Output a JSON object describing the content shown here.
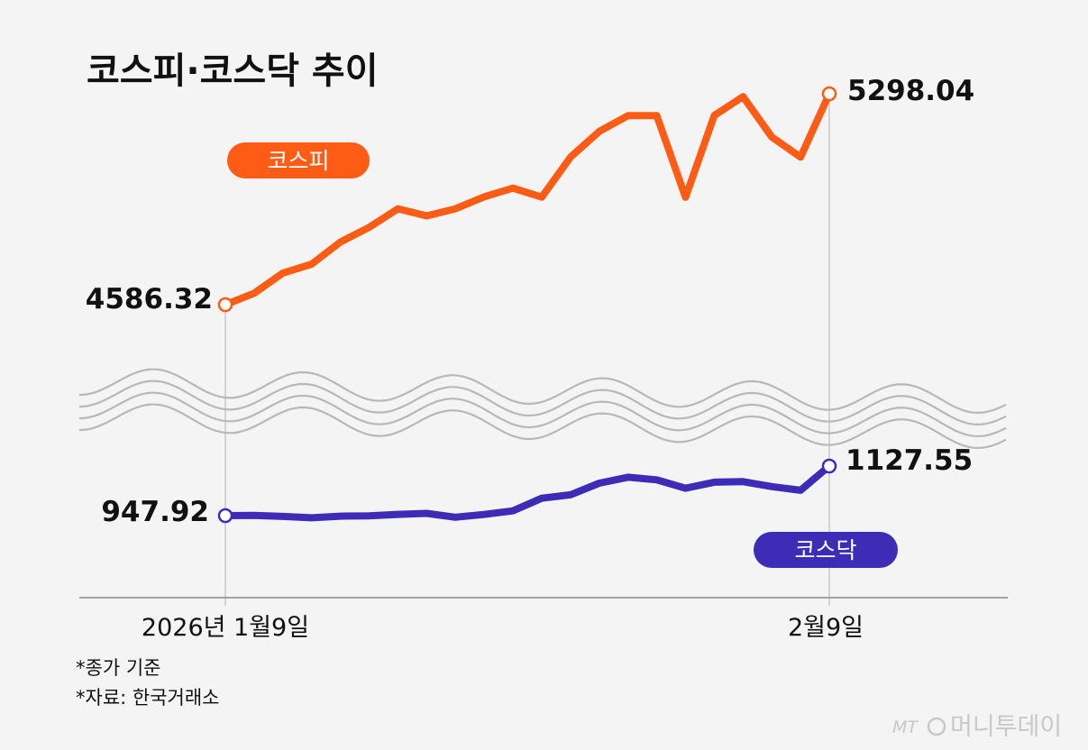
{
  "title": "코스피·코스닥 추이",
  "notes": [
    "*종가 기준",
    "*자료: 한국거래소"
  ],
  "watermark": {
    "brand": "MT",
    "name": "머니투데이"
  },
  "colors": {
    "kospi": "#fe5b14",
    "kosdaq": "#3e2cb7",
    "panel": "#f4f4f4",
    "axis": "#888888",
    "text": "#111111"
  },
  "chart_data": {
    "type": "line",
    "title": "코스피·코스닥 추이",
    "x_labels": {
      "start": "2026년 1월9일",
      "end": "2월9일"
    },
    "ylim_note": "broken axis between series",
    "series": [
      {
        "name": "코스피",
        "label": "코스피",
        "start_label": "4586.32",
        "end_label": "5298.04",
        "values": [
          4586.32,
          4624.8,
          4693.2,
          4723.1,
          4797.6,
          4847.2,
          4909.9,
          4885.8,
          4909.9,
          4950.3,
          4979.6,
          4949.3,
          5084.2,
          5170.8,
          5224.2,
          5224.2,
          4948.6,
          5224.7,
          5288.4,
          5151.9,
          5084.2,
          5298.04
        ]
      },
      {
        "name": "코스닥",
        "label": "코스닥",
        "start_label": "947.92",
        "end_label": "1127.55",
        "values": [
          947.92,
          948.5,
          945.1,
          940.2,
          945.9,
          947.4,
          952.5,
          956.2,
          941.9,
          952.2,
          965.3,
          1010.8,
          1023.4,
          1065.6,
          1086.9,
          1077.5,
          1047.3,
          1069.2,
          1071.1,
          1053.2,
          1039.8,
          1127.55
        ]
      }
    ]
  }
}
